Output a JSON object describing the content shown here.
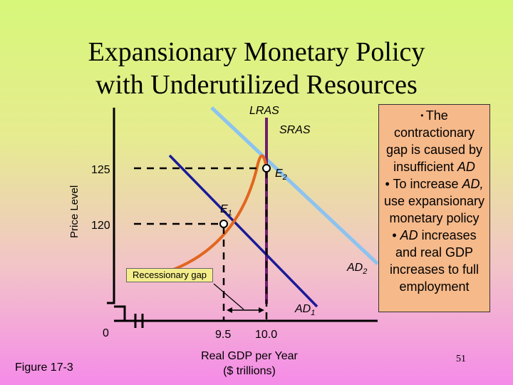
{
  "title": {
    "line1": "Expansionary Monetary Policy",
    "line2": "with Underutilized Resources"
  },
  "axes": {
    "y_title": "Price Level",
    "x_title_line1": "Real GDP per Year",
    "x_title_line2": "($ trillions)",
    "origin": "0",
    "y_ticks": [
      "125",
      "120"
    ],
    "x_ticks": [
      "9.5",
      "10.0"
    ]
  },
  "curves": {
    "lras": "LRAS",
    "sras": "SRAS",
    "ad1_base": "AD",
    "ad1_sub": "1",
    "ad2_base": "AD",
    "ad2_sub": "2"
  },
  "points": {
    "e1_base": "E",
    "e1_sub": "1",
    "e2_base": "E",
    "e2_sub": "2"
  },
  "gap_label": "Recessionary gap",
  "callout": {
    "bullet1_pre": "The contractionary gap is caused by insufficient ",
    "bullet1_em": "AD",
    "bullet2_pre": "• To increase ",
    "bullet2_em": "AD,",
    "bullet2_post": " use expansionary monetary policy",
    "bullet3_pre": "• ",
    "bullet3_em": "AD",
    "bullet3_post": " increases and real GDP increases to full employment"
  },
  "figure_label": "Figure 17-3",
  "page_number": "51",
  "colors": {
    "lras": "#6e1f6b",
    "sras": "#8cc3f0",
    "ad1": "#1a1a99",
    "ad2": "#e2661f",
    "callout_bg": "#f6b98a"
  }
}
